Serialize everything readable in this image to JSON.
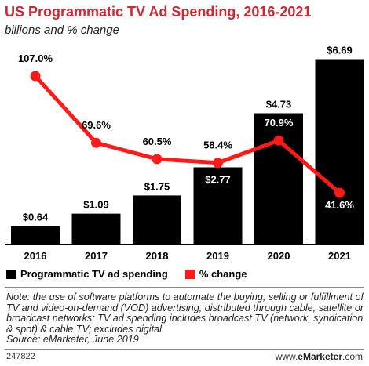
{
  "header": {
    "title": "US Programmatic TV Ad Spending, 2016-2021",
    "subtitle": "billions and % change"
  },
  "chart_data": {
    "type": "bar",
    "categories": [
      "2016",
      "2017",
      "2018",
      "2019",
      "2020",
      "2021"
    ],
    "series": [
      {
        "name": "Programmatic TV ad spending",
        "type": "bar",
        "values": [
          0.64,
          1.09,
          1.75,
          2.77,
          4.73,
          6.69
        ],
        "labels": [
          "$0.64",
          "$1.09",
          "$1.75",
          "$2.77",
          "$4.73",
          "$6.69"
        ],
        "color": "#000000"
      },
      {
        "name": "% change",
        "type": "line",
        "values": [
          107.0,
          69.6,
          60.5,
          58.4,
          70.9,
          41.6
        ],
        "labels": [
          "107.0%",
          "69.6%",
          "60.5%",
          "58.4%",
          "70.9%",
          "41.6%"
        ],
        "color": "#ff1a1a"
      }
    ],
    "legend_position": "bottom-left",
    "grid": false
  },
  "legend": {
    "bar_label": "Programmatic TV ad spending",
    "line_label": "% change"
  },
  "note": "Note: the use of software platforms to automate the buying, selling or fulfillment of TV and video-on-demand (VOD) advertising, distributed through cable, satellite or broadcast networks; TV ad spending includes broadcast TV (network, syndication & spot) & cable TV; excludes digital",
  "source": "Source: eMarketer, June 2019",
  "footer": {
    "chart_id": "247822",
    "brand_prefix": "www.",
    "brand_name": "eMarketer",
    "brand_suffix": ".com"
  }
}
